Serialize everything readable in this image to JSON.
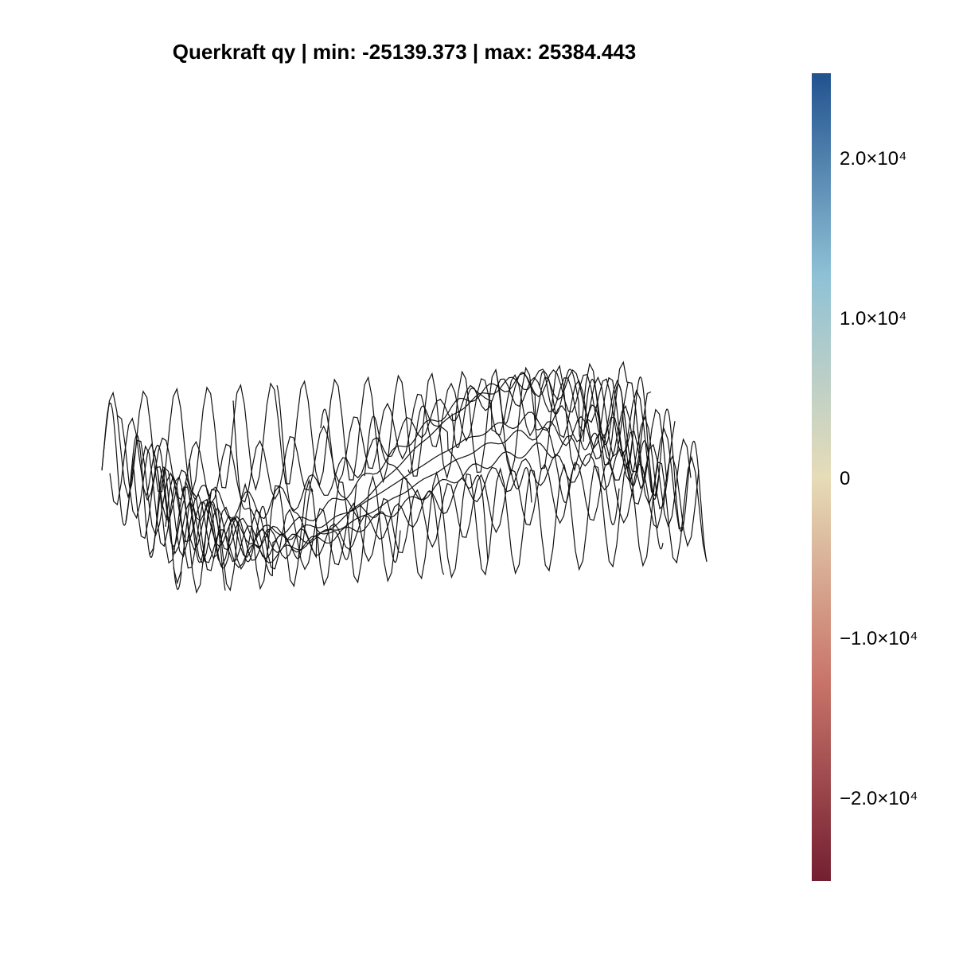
{
  "chart_data": {
    "type": "surface",
    "title": "Querkraft qy | min: -25139.373 | max: 25384.443",
    "stats": {
      "min": -25139.373,
      "max": 25384.443
    },
    "description_style": "3d wireframe surface",
    "surface": {
      "pattern": "quadrant-alternating antisymmetric field with spiky oscillations near edges",
      "grid_nx": 12,
      "grid_ny": 10
    },
    "colorbar": {
      "colormap": "diverging red-beige-blue",
      "colors": [
        "#741f31",
        "#c9756a",
        "#e6dcb8",
        "#8ec1d6",
        "#22528f"
      ],
      "range": [
        -25139.373,
        25384.443
      ],
      "ticks": [
        {
          "value": 20000,
          "label": "2.0×10⁴"
        },
        {
          "value": 10000,
          "label": "1.0×10⁴"
        },
        {
          "value": 0,
          "label": "0"
        },
        {
          "value": -10000,
          "label": "−1.0×10⁴"
        },
        {
          "value": -20000,
          "label": "−2.0×10⁴"
        }
      ]
    },
    "axes_visible": false,
    "grid": false
  }
}
